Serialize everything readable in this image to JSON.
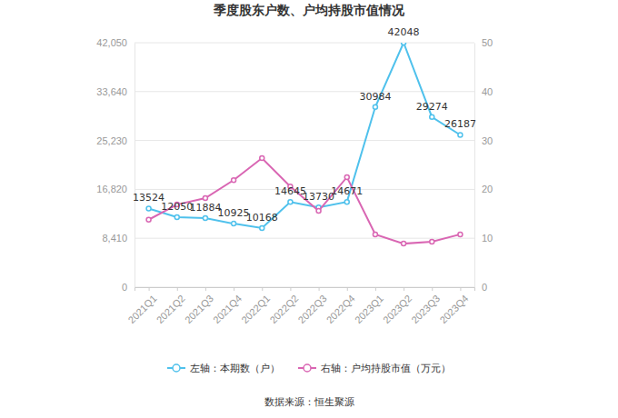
{
  "chart_data": {
    "type": "line",
    "title": "季度股东户数、户均持股市值情况",
    "source": "数据来源：恒生聚源",
    "categories": [
      "2021Q1",
      "2021Q2",
      "2021Q3",
      "2021Q4",
      "2022Q1",
      "2022Q2",
      "2022Q3",
      "2022Q4",
      "2023Q1",
      "2023Q2",
      "2023Q3",
      "2023Q4"
    ],
    "series": [
      {
        "name": "左轴：本期数（户）",
        "color": "#4fc1ec",
        "marker": "circle",
        "data_labels": true,
        "values": [
          13524,
          12050,
          11884,
          10925,
          10168,
          14645,
          13730,
          14671,
          30984,
          42048,
          29274,
          26187
        ]
      },
      {
        "name": "右轴：户均持股市值（万元）",
        "color": "#d966b3",
        "marker": "circle",
        "axis": "y2",
        "values": [
          13.8,
          16.9,
          18.2,
          21.9,
          26.4,
          20.6,
          15.6,
          22.5,
          10.8,
          8.9,
          9.3,
          10.8
        ]
      }
    ],
    "ylim": [
      0,
      42050
    ],
    "yticks": [
      0,
      {
        "value": 8410,
        "label": "8,410"
      },
      {
        "value": 16820,
        "label": "16,820"
      },
      {
        "value": 25230,
        "label": "25,230"
      },
      {
        "value": 33640,
        "label": "33,640"
      },
      {
        "value": 42050,
        "label": "42,050"
      }
    ],
    "y2lim": [
      0,
      50
    ],
    "y2ticks": [
      0,
      10,
      20,
      30,
      40,
      50
    ],
    "grid": true,
    "legend": "bottom"
  }
}
